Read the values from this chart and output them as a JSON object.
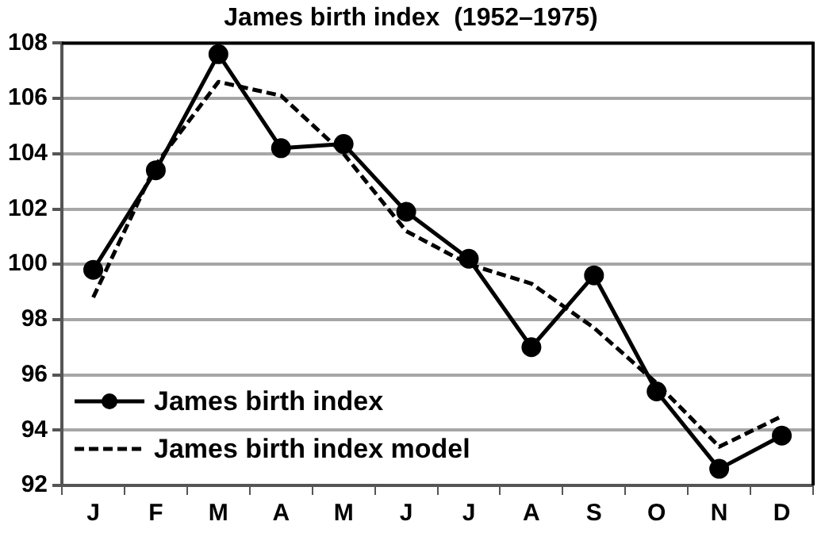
{
  "chart_data": {
    "type": "line",
    "title": "James birth index  (1952–1975)",
    "categories": [
      "J",
      "F",
      "M",
      "A",
      "M",
      "J",
      "J",
      "A",
      "S",
      "O",
      "N",
      "D"
    ],
    "series": [
      {
        "name": "James birth index",
        "color": "#000000",
        "marker": "circle",
        "line_style": "solid",
        "values": [
          99.8,
          103.4,
          107.6,
          104.2,
          104.35,
          101.9,
          100.2,
          97.0,
          99.6,
          95.4,
          92.6,
          93.8
        ]
      },
      {
        "name": "James birth index model",
        "color": "#000000",
        "marker": "none",
        "line_style": "dashed",
        "values": [
          98.8,
          103.6,
          106.6,
          106.1,
          104.0,
          101.2,
          100.0,
          99.3,
          97.7,
          95.7,
          93.4,
          94.5
        ]
      }
    ],
    "ylim": [
      92,
      108
    ],
    "yticks": [
      92,
      94,
      96,
      98,
      100,
      102,
      104,
      106,
      108
    ],
    "grid": "y",
    "legend": "bottom left"
  }
}
